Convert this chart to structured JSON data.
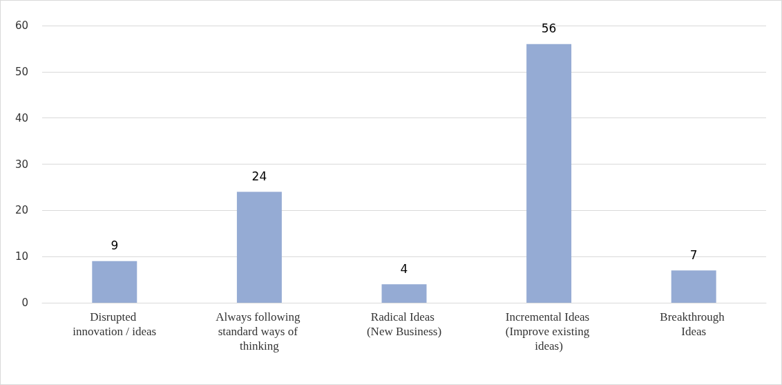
{
  "chart_data": {
    "type": "bar",
    "categories": [
      "Disrupted innovation / ideas",
      "Always following standard ways of thinking",
      "Radical Ideas (New Business)",
      "Incremental Ideas (Improve existing ideas)",
      "Breakthrough Ideas"
    ],
    "values": [
      9,
      24,
      4,
      56,
      7
    ],
    "color": "#95abd4",
    "ylim": [
      0,
      60
    ],
    "yticks": [
      0,
      10,
      20,
      30,
      40,
      50,
      60
    ],
    "grid": "y",
    "data_labels": true
  }
}
